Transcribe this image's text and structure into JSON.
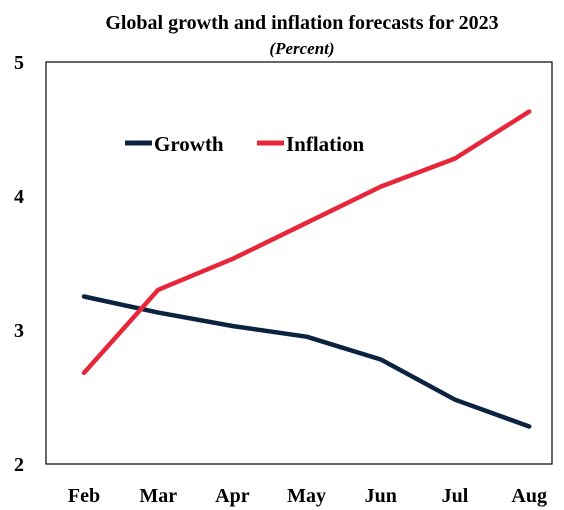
{
  "chart_data": {
    "type": "line",
    "title": "Global growth and inflation forecasts for 2023",
    "subtitle": "(Percent)",
    "categories": [
      "Feb",
      "Mar",
      "Apr",
      "May",
      "Jun",
      "Jul",
      "Aug"
    ],
    "series": [
      {
        "name": "Growth",
        "color": "#0b2341",
        "values": [
          3.25,
          3.13,
          3.03,
          2.95,
          2.78,
          2.48,
          2.28
        ]
      },
      {
        "name": "Inflation",
        "color": "#e8263a",
        "values": [
          2.68,
          3.3,
          3.53,
          3.8,
          4.07,
          4.28,
          4.63
        ]
      }
    ],
    "yticks": [
      2,
      3,
      4,
      5
    ],
    "ylim": [
      2,
      5
    ],
    "grid": false,
    "legend": "top-left"
  }
}
